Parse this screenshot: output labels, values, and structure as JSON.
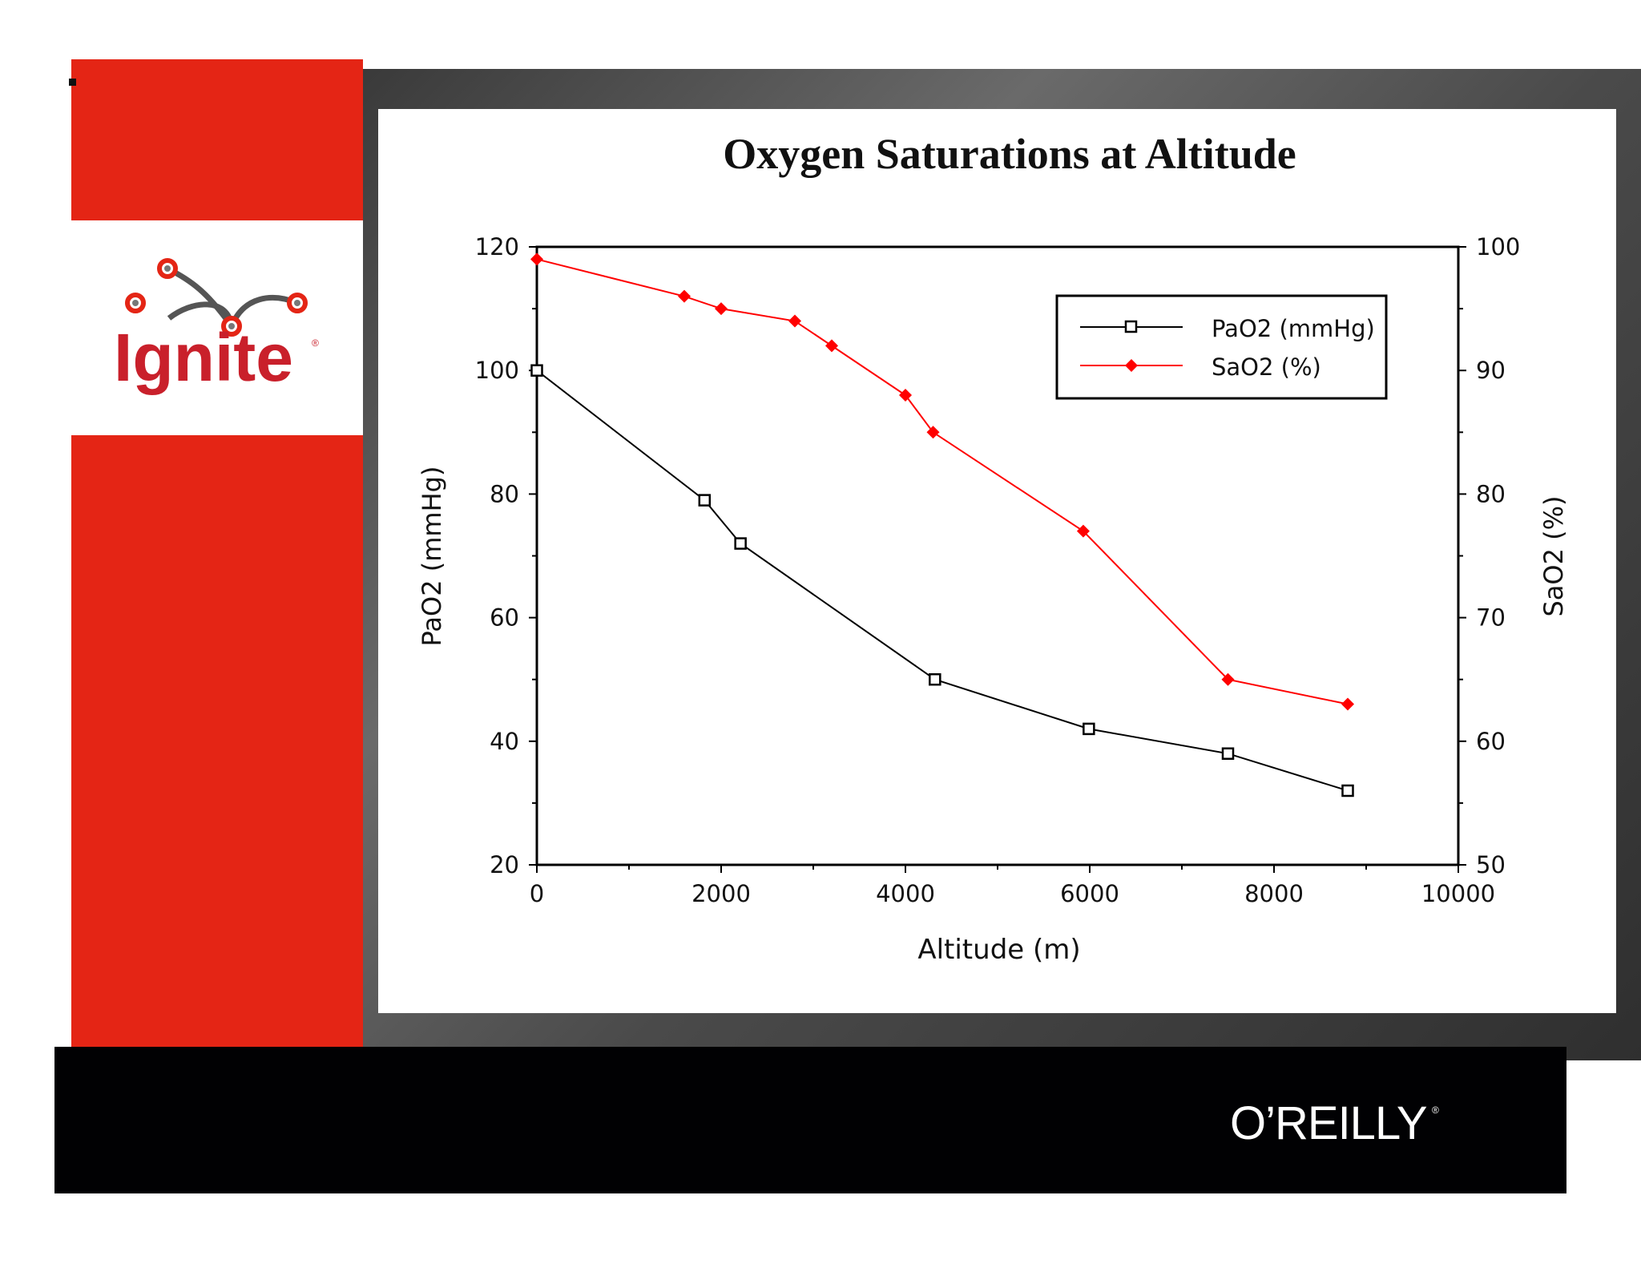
{
  "branding": {
    "event_logo_text": "Ignite",
    "publisher_logo_text": "O’REILLY",
    "registered_mark": "®"
  },
  "colors": {
    "brand_red": "#e42515",
    "pao2_line": "#000000",
    "sao2_line": "#ff0000",
    "footer_bg": "#010103"
  },
  "chart_data": {
    "type": "line",
    "title": "Oxygen Saturations at Altitude",
    "xlabel": "Altitude (m)",
    "ylabel_left": "PaO2 (mmHg)",
    "ylabel_right": "SaO2 (%)",
    "xlim": [
      0,
      10000
    ],
    "ylim_left": [
      20,
      120
    ],
    "ylim_right": [
      50,
      100
    ],
    "x_ticks": [
      "0",
      "2000",
      "4000",
      "6000",
      "8000",
      "10000"
    ],
    "y_ticks_left": [
      "20",
      "40",
      "60",
      "80",
      "100",
      "120"
    ],
    "y_ticks_right": [
      "50",
      "60",
      "70",
      "80",
      "90",
      "100"
    ],
    "legend_position": "top-right",
    "series": [
      {
        "name": "PaO2 (mmHg)",
        "axis": "left",
        "marker": "open-square",
        "color": "#000000",
        "x": [
          0,
          1820,
          2210,
          4320,
          5990,
          7500,
          8800
        ],
        "y": [
          100,
          79,
          72,
          50,
          42,
          38,
          32
        ]
      },
      {
        "name": "SaO2 (%)",
        "axis": "right",
        "marker": "filled-diamond",
        "color": "#ff0000",
        "x": [
          0,
          1600,
          2000,
          2800,
          3200,
          4000,
          4300,
          5930,
          7500,
          8800
        ],
        "y": [
          99,
          96,
          95,
          94,
          92,
          88,
          85,
          77,
          65,
          63
        ]
      }
    ]
  }
}
